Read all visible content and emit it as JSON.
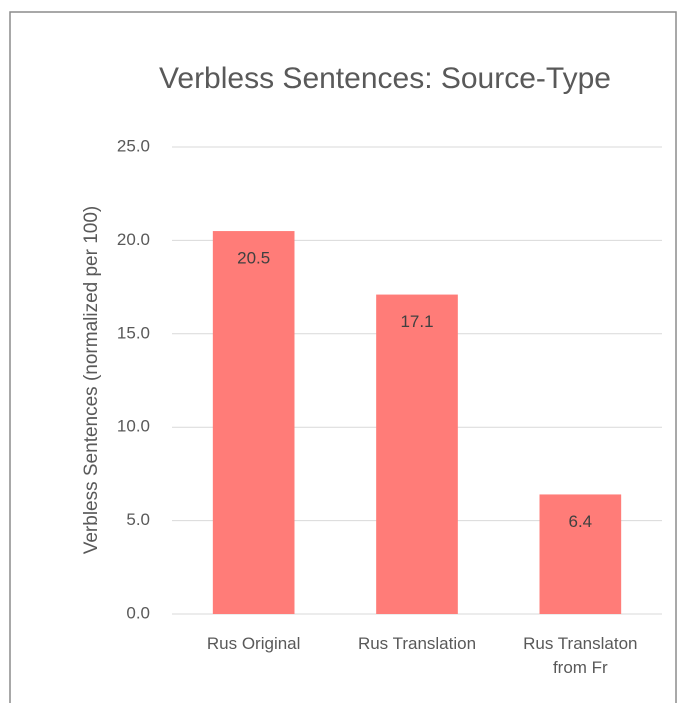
{
  "chart_data": {
    "type": "bar",
    "title": "Verbless Sentences: Source-Type",
    "y_label": "Verbless Sentences (normalized per 100)",
    "categories": [
      "Rus Original",
      "Rus Translation",
      "Rus Translaton from Fr"
    ],
    "values": [
      20.5,
      17.1,
      6.4
    ],
    "color": "#ff7c78",
    "ylim": [
      0,
      25
    ],
    "yticks": [
      {
        "value": 0,
        "label": "0.0"
      },
      {
        "value": 5,
        "label": "5.0"
      },
      {
        "value": 10,
        "label": "10.0"
      },
      {
        "value": 15,
        "label": "15.0"
      },
      {
        "value": 20,
        "label": "20.0"
      },
      {
        "value": 25,
        "label": "25.0"
      }
    ],
    "grid": true
  }
}
